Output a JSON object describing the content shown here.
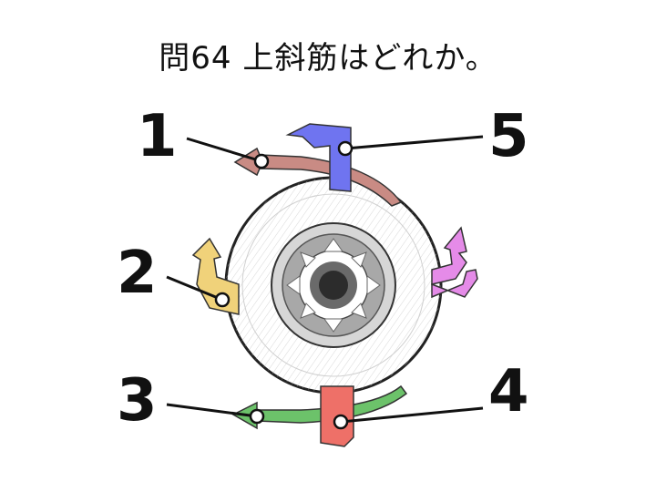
{
  "question": {
    "title": "問64 上斜筋はどれか。"
  },
  "labels": [
    {
      "id": 1,
      "text": "1",
      "color": "#c98b84"
    },
    {
      "id": 2,
      "text": "2",
      "color": "#f0d27a"
    },
    {
      "id": 3,
      "text": "3",
      "color": "#6cc26a"
    },
    {
      "id": 4,
      "text": "4",
      "color": "#ee7068"
    },
    {
      "id": 5,
      "text": "5",
      "color": "#6f74f0"
    }
  ],
  "extra_muscle_color": "#e58be8",
  "icons": {
    "eyeball": "eyeball-illustration-icon",
    "iris": "iris-icon"
  }
}
